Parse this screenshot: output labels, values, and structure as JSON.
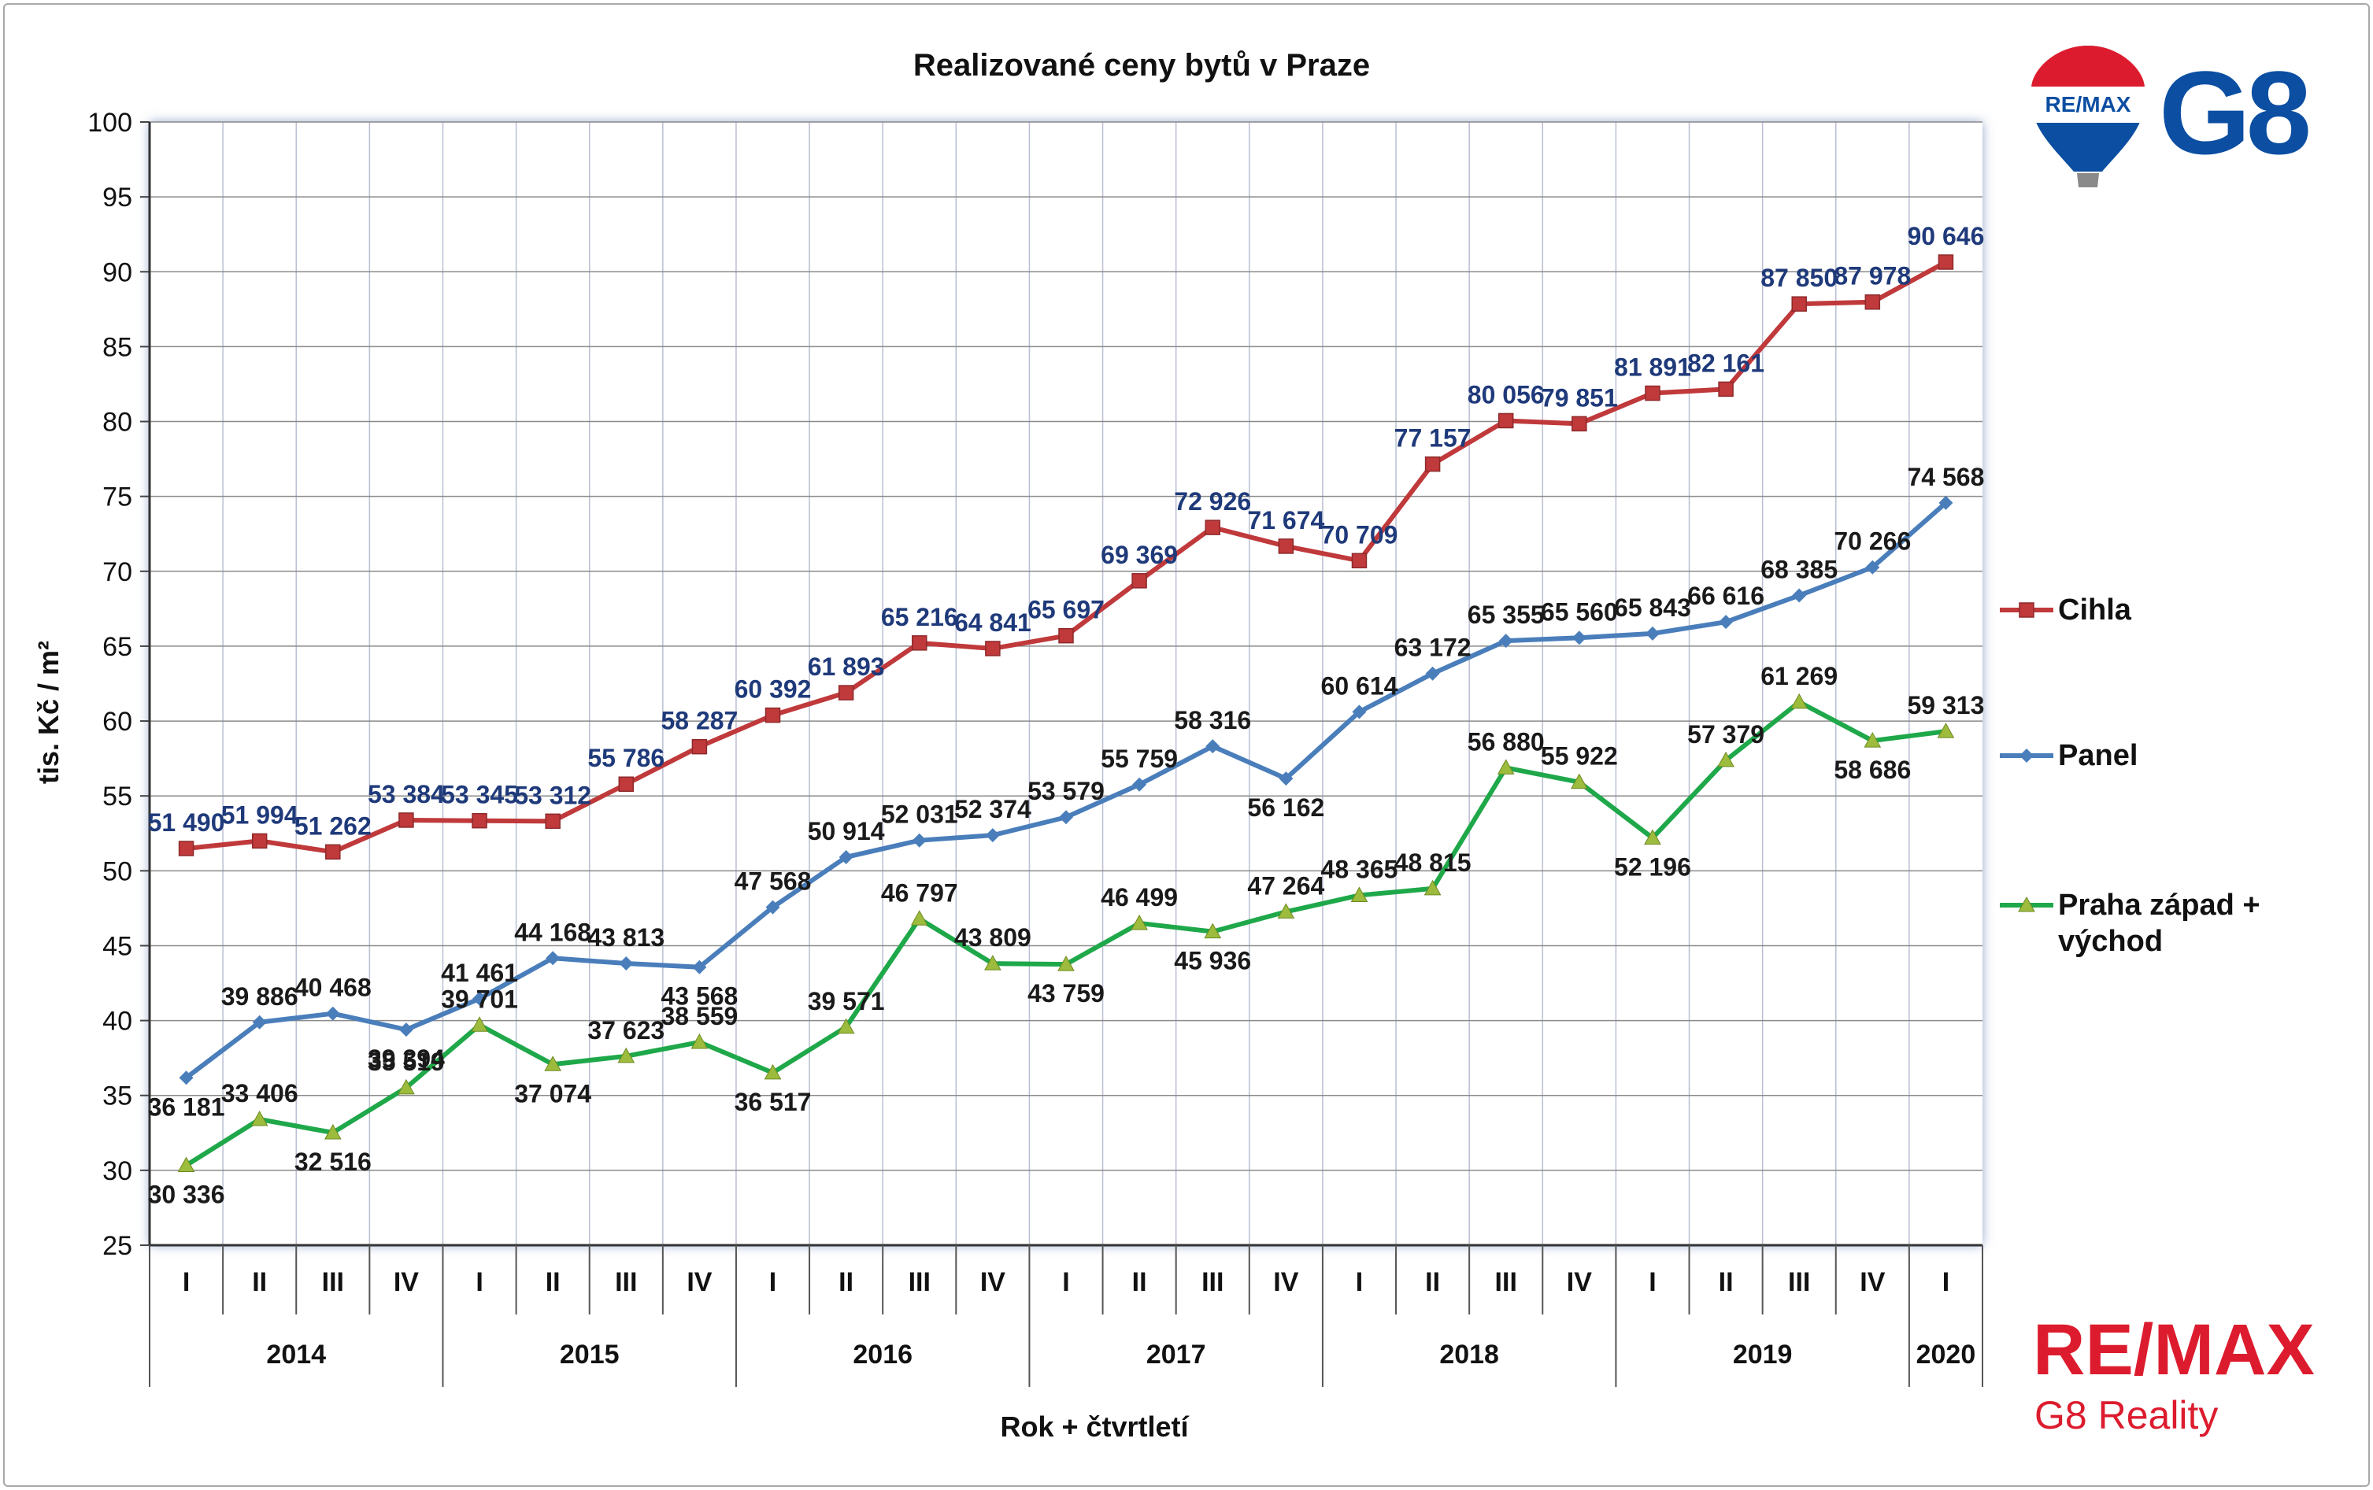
{
  "branding": {
    "remax_balloon_text": "RE/MAX",
    "g8_mark": "G8",
    "remax_word": "RE/MAX",
    "reality_name": "G8 Reality",
    "colors": {
      "red": "#dc1c2e",
      "blue": "#0b4ea2"
    }
  },
  "chart_data": {
    "type": "line",
    "title": "Realizované ceny bytů v Praze",
    "ylabel": "tis. Kč / m²",
    "xlabel": "Rok + čtvrtletí",
    "ylim": [
      25,
      100
    ],
    "yticks": [
      25,
      30,
      35,
      40,
      45,
      50,
      55,
      60,
      65,
      70,
      75,
      80,
      85,
      90,
      95,
      100
    ],
    "grid": true,
    "legend_position": "right",
    "quarters": [
      "I",
      "II",
      "III",
      "IV",
      "I",
      "II",
      "III",
      "IV",
      "I",
      "II",
      "III",
      "IV",
      "I",
      "II",
      "III",
      "IV",
      "I",
      "II",
      "III",
      "IV",
      "I",
      "II",
      "III",
      "IV",
      "I"
    ],
    "years": [
      {
        "label": "2014",
        "quarters": 4
      },
      {
        "label": "2015",
        "quarters": 4
      },
      {
        "label": "2016",
        "quarters": 4
      },
      {
        "label": "2017",
        "quarters": 4
      },
      {
        "label": "2018",
        "quarters": 4
      },
      {
        "label": "2019",
        "quarters": 4
      },
      {
        "label": "2020",
        "quarters": 1
      }
    ],
    "series": [
      {
        "name": "Cihla",
        "color": "#c0393b",
        "label_color": "#1f3a7a",
        "marker": "square",
        "values": [
          51.49,
          51.994,
          51.262,
          53.384,
          53.345,
          53.312,
          55.786,
          58.287,
          60.392,
          61.893,
          65.216,
          64.841,
          65.697,
          69.369,
          72.926,
          71.674,
          70.709,
          77.157,
          80.056,
          79.851,
          81.891,
          82.161,
          87.85,
          87.978,
          90.646
        ],
        "labels": [
          "51 490",
          "51 994",
          "51 262",
          "53 384",
          "53 345",
          "53 312",
          "55 786",
          "58 287",
          "60 392",
          "61 893",
          "65 216",
          "64 841",
          "65 697",
          "69 369",
          "72 926",
          "71 674",
          "70 709",
          "77 157",
          "80 056",
          "79 851",
          "81 891",
          "82 161",
          "87 850",
          "87 978",
          "90 646"
        ]
      },
      {
        "name": "Panel",
        "color": "#4a7ebb",
        "label_color": "#1a1a1a",
        "marker": "diamond",
        "values": [
          36.181,
          39.886,
          40.468,
          39.394,
          41.461,
          44.168,
          43.813,
          43.568,
          47.568,
          50.914,
          52.031,
          52.374,
          53.579,
          55.759,
          58.316,
          56.162,
          60.614,
          63.172,
          65.355,
          65.56,
          65.843,
          66.616,
          68.385,
          70.266,
          74.568
        ],
        "labels": [
          "36 181",
          "39 886",
          "40 468",
          "39 394",
          "41 461",
          "44 168",
          "43 813",
          "43 568",
          "47 568",
          "50 914",
          "52 031",
          "52 374",
          "53 579",
          "55 759",
          "58 316",
          "56 162",
          "60 614",
          "63 172",
          "65 355",
          "65 560",
          "65 843",
          "66 616",
          "68 385",
          "70 266",
          "74 568"
        ]
      },
      {
        "name": "Praha západ + východ",
        "color": "#1fa84a",
        "label_color": "#1a1a1a",
        "marker": "triangle",
        "values": [
          30.336,
          33.406,
          32.516,
          35.519,
          39.701,
          37.074,
          37.623,
          38.559,
          36.517,
          39.571,
          46.797,
          43.809,
          43.759,
          46.499,
          45.936,
          47.264,
          48.365,
          48.815,
          56.88,
          55.922,
          52.196,
          57.379,
          61.269,
          58.686,
          59.313
        ],
        "labels": [
          "30 336",
          "33 406",
          "32 516",
          "35 519",
          "39 701",
          "37 074",
          "37 623",
          "38 559",
          "36 517",
          "39 571",
          "46 797",
          "43 809",
          "43 759",
          "46 499",
          "45 936",
          "47 264",
          "48 365",
          "48 815",
          "56 880",
          "55 922",
          "52 196",
          "57 379",
          "61 269",
          "58 686",
          "59 313"
        ]
      }
    ]
  }
}
